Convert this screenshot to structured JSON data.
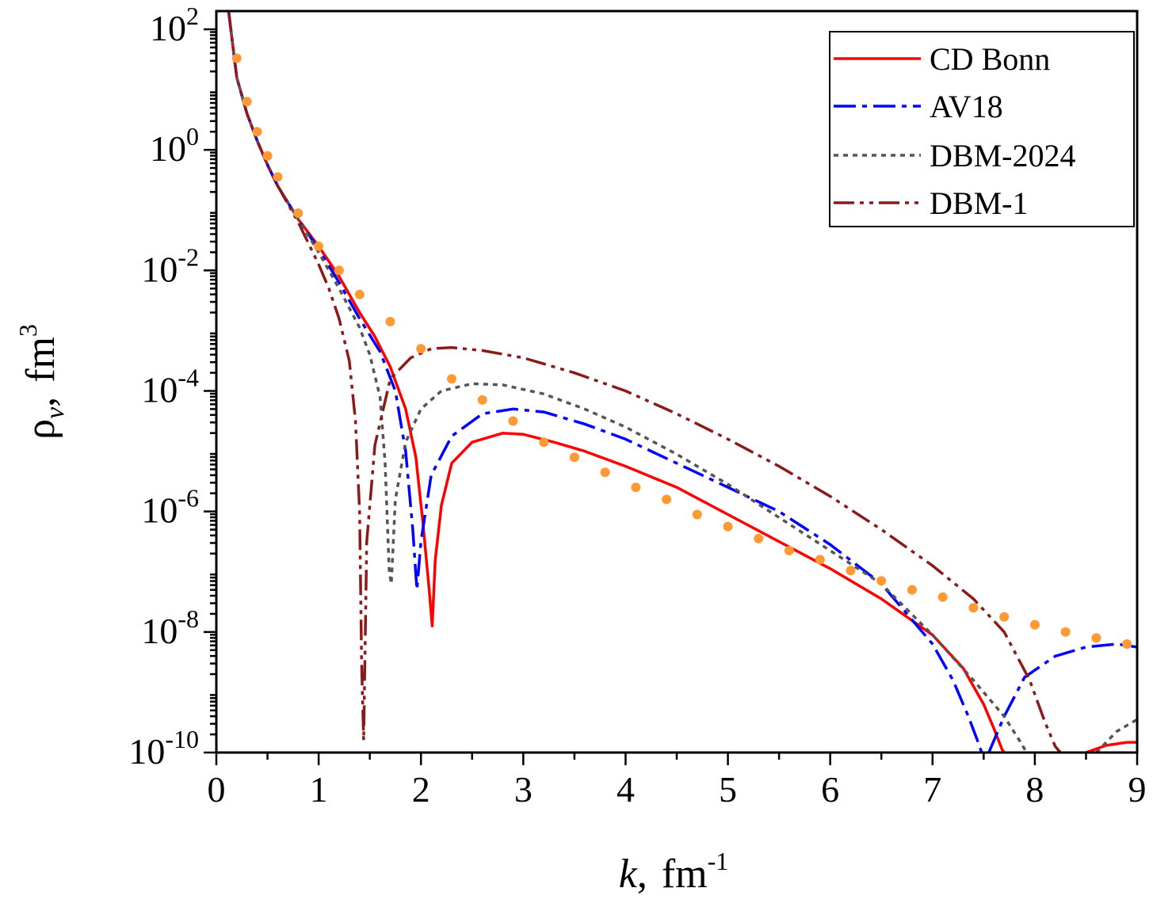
{
  "chart_data": {
    "type": "line",
    "xlabel_var": "k",
    "xlabel_sep": ",",
    "xlabel_unit": "fm",
    "xlabel_exp": "-1",
    "ylabel_var": "ρ",
    "ylabel_sub": "v",
    "ylabel_sep": ",",
    "ylabel_unit": "fm",
    "ylabel_exp": "3",
    "xlim": [
      0,
      9
    ],
    "ylim_log10": [
      -10,
      2
    ],
    "log_y": true,
    "x_ticks": [
      "0",
      "1",
      "2",
      "3",
      "4",
      "5",
      "6",
      "7",
      "8",
      "9"
    ],
    "y_ticks": [
      {
        "base": "10",
        "exp": "2",
        "value": 2
      },
      {
        "base": "10",
        "exp": "0",
        "value": 0
      },
      {
        "base": "10",
        "exp": "-2",
        "value": -2
      },
      {
        "base": "10",
        "exp": "-4",
        "value": -4
      },
      {
        "base": "10",
        "exp": "-6",
        "value": -6
      },
      {
        "base": "10",
        "exp": "-8",
        "value": -8
      },
      {
        "base": "10",
        "exp": "-10",
        "value": -10
      }
    ],
    "legend_position": "top-right",
    "series": [
      {
        "name": "CD Bonn",
        "color": "#ff0000",
        "dash": "",
        "x": [
          0.12,
          0.2,
          0.3,
          0.4,
          0.5,
          0.6,
          0.8,
          1.0,
          1.2,
          1.4,
          1.55,
          1.7,
          1.85,
          1.95,
          2.02,
          2.08,
          2.11,
          2.14,
          2.2,
          2.3,
          2.5,
          2.8,
          3.0,
          3.3,
          3.6,
          4.0,
          4.5,
          5.0,
          5.5,
          6.0,
          6.5,
          7.0,
          7.3,
          7.5,
          7.6,
          7.68,
          7.7
        ],
        "log10": [
          2.3,
          1.2,
          0.6,
          0.15,
          -0.25,
          -0.6,
          -1.15,
          -1.6,
          -2.1,
          -2.7,
          -3.1,
          -3.6,
          -4.3,
          -5.1,
          -6.2,
          -7.3,
          -7.9,
          -6.8,
          -5.9,
          -5.2,
          -4.85,
          -4.7,
          -4.72,
          -4.85,
          -5.0,
          -5.25,
          -5.6,
          -6.05,
          -6.5,
          -6.95,
          -7.45,
          -8.05,
          -8.6,
          -9.2,
          -9.6,
          -9.95,
          -10.0
        ],
        "tail_x": [
          8.5,
          8.7,
          8.9,
          9.0
        ],
        "tail_log10": [
          -10.0,
          -9.88,
          -9.83,
          -9.83
        ]
      },
      {
        "name": "AV18",
        "color": "#0000ff",
        "dash": "28,8,6,8",
        "x": [
          0.12,
          0.2,
          0.3,
          0.4,
          0.5,
          0.6,
          0.8,
          1.0,
          1.2,
          1.4,
          1.6,
          1.75,
          1.85,
          1.92,
          1.96,
          2.0,
          2.1,
          2.3,
          2.6,
          2.9,
          3.2,
          3.6,
          4.0,
          4.5,
          5.0,
          5.5,
          6.0,
          6.5,
          7.0,
          7.2,
          7.35,
          7.45,
          7.48
        ],
        "log10": [
          2.3,
          1.2,
          0.6,
          0.15,
          -0.25,
          -0.6,
          -1.15,
          -1.65,
          -2.2,
          -2.8,
          -3.35,
          -4.0,
          -5.0,
          -6.3,
          -7.3,
          -6.5,
          -5.4,
          -4.75,
          -4.38,
          -4.3,
          -4.35,
          -4.55,
          -4.8,
          -5.2,
          -5.6,
          -6.0,
          -6.55,
          -7.2,
          -8.2,
          -8.8,
          -9.4,
          -9.85,
          -10.0
        ],
        "tail_x": [
          7.55,
          7.7,
          7.9,
          8.2,
          8.5,
          8.8,
          9.0
        ],
        "tail_log10": [
          -10.0,
          -9.4,
          -8.75,
          -8.4,
          -8.25,
          -8.2,
          -8.25
        ]
      },
      {
        "name": "DBM-2024",
        "color": "#555555",
        "dash": "6,6",
        "x": [
          0.12,
          0.2,
          0.3,
          0.4,
          0.5,
          0.6,
          0.8,
          1.0,
          1.2,
          1.4,
          1.5,
          1.6,
          1.65,
          1.69,
          1.71,
          1.75,
          1.85,
          2.0,
          2.2,
          2.5,
          2.8,
          3.2,
          3.6,
          4.0,
          4.5,
          5.0,
          5.5,
          6.0,
          6.5,
          7.0,
          7.4,
          7.7,
          7.85,
          7.92
        ],
        "log10": [
          2.3,
          1.2,
          0.6,
          0.15,
          -0.25,
          -0.6,
          -1.15,
          -1.7,
          -2.3,
          -2.95,
          -3.4,
          -4.1,
          -5.2,
          -7.0,
          -7.2,
          -5.8,
          -4.85,
          -4.3,
          -4.0,
          -3.88,
          -3.9,
          -4.05,
          -4.3,
          -4.6,
          -5.05,
          -5.55,
          -6.1,
          -6.65,
          -7.2,
          -8.05,
          -8.8,
          -9.4,
          -9.8,
          -10.0
        ],
        "tail_x": [
          8.6,
          8.8,
          9.0
        ],
        "tail_log10": [
          -10.0,
          -9.65,
          -9.45
        ]
      },
      {
        "name": "DBM-1",
        "color": "#8b1a1a",
        "dash": "26,7,5,7,5,7",
        "x": [
          0.12,
          0.2,
          0.3,
          0.4,
          0.5,
          0.6,
          0.8,
          1.0,
          1.1,
          1.2,
          1.3,
          1.36,
          1.4,
          1.42,
          1.44,
          1.47,
          1.55,
          1.7,
          1.9,
          2.1,
          2.3,
          2.6,
          3.0,
          3.5,
          4.0,
          4.5,
          5.0,
          5.5,
          6.0,
          6.5,
          7.0,
          7.4,
          7.7,
          7.95,
          8.1,
          8.2,
          8.25
        ],
        "log10": [
          2.3,
          1.2,
          0.6,
          0.15,
          -0.25,
          -0.6,
          -1.2,
          -1.9,
          -2.3,
          -2.8,
          -3.5,
          -4.5,
          -6.0,
          -8.5,
          -9.8,
          -6.5,
          -4.9,
          -3.8,
          -3.45,
          -3.3,
          -3.28,
          -3.33,
          -3.45,
          -3.7,
          -4.0,
          -4.38,
          -4.8,
          -5.25,
          -5.75,
          -6.3,
          -6.9,
          -7.45,
          -8.0,
          -8.8,
          -9.5,
          -9.9,
          -10.0
        ],
        "tail_x": [],
        "tail_log10": []
      }
    ],
    "points": {
      "color": "#ff9933",
      "x": [
        0.2,
        0.3,
        0.4,
        0.5,
        0.6,
        0.8,
        1.0,
        1.2,
        1.4,
        1.7,
        2.0,
        2.3,
        2.6,
        2.9,
        3.2,
        3.5,
        3.8,
        4.1,
        4.4,
        4.7,
        5.0,
        5.3,
        5.6,
        5.9,
        6.2,
        6.5,
        6.8,
        7.1,
        7.4,
        7.7,
        8.0,
        8.3,
        8.6,
        8.9
      ],
      "log10": [
        1.52,
        0.8,
        0.3,
        -0.1,
        -0.45,
        -1.05,
        -1.6,
        -2.0,
        -2.4,
        -2.85,
        -3.3,
        -3.8,
        -4.15,
        -4.5,
        -4.85,
        -5.1,
        -5.35,
        -5.6,
        -5.8,
        -6.05,
        -6.25,
        -6.45,
        -6.65,
        -6.8,
        -6.98,
        -7.15,
        -7.3,
        -7.42,
        -7.6,
        -7.75,
        -7.88,
        -8.0,
        -8.1,
        -8.2
      ]
    }
  }
}
